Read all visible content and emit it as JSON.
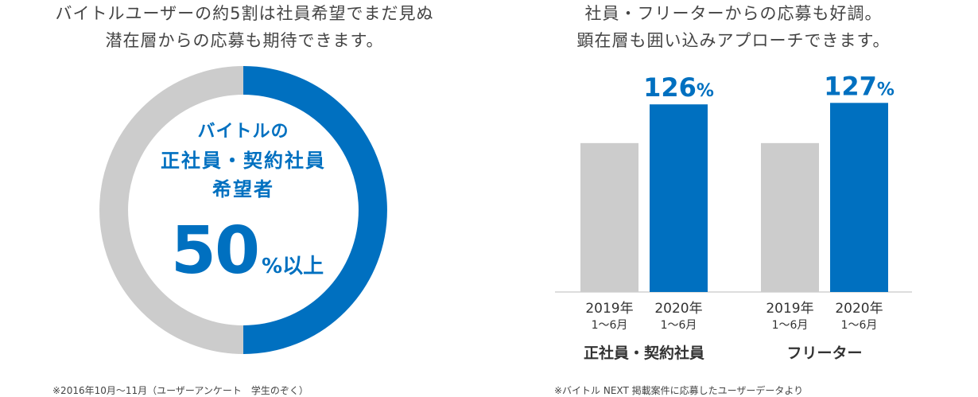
{
  "left": {
    "headline": [
      "バイトルユーザーの約5割は社員希望でまだ見ぬ",
      "潜在層からの応募も期待できます。"
    ],
    "ring_label": [
      "バイトルの",
      "正社員・契約社員",
      "希望者"
    ],
    "ring_value": "50",
    "ring_unit": "%以上",
    "footnote": "※2016年10月〜11月（ユーザーアンケート　学生のぞく）",
    "colors": {
      "filled": "#0070c0",
      "remaining": "#cccccc"
    }
  },
  "right": {
    "headline": [
      "社員・フリーターからの応募も好調。",
      "顕在層も囲い込みアプローチできます。"
    ],
    "footnote": "※バイトル NEXT 掲載案件に応募したユーザーデータより"
  },
  "chart_data": [
    {
      "type": "pie",
      "slices": [
        {
          "label": "正社員・契約社員希望者",
          "value": 50,
          "color": "#0070c0"
        },
        {
          "label": "",
          "value": 50,
          "color": "#cccccc"
        }
      ],
      "title": "バイトルの 正社員・契約社員 希望者 50%以上",
      "style": "donut"
    },
    {
      "type": "bar",
      "groups": [
        "正社員・契約社員",
        "フリーター"
      ],
      "categories": [
        [
          "2019年",
          "1〜6月"
        ],
        [
          "2020年",
          "1〜6月"
        ]
      ],
      "series": [
        {
          "values": [
            100,
            100
          ],
          "color": "#cccccc"
        },
        {
          "values": [
            126,
            127
          ],
          "color": "#0070c0"
        }
      ],
      "data_labels": [
        "",
        "126%",
        "",
        "127%"
      ],
      "ylim": [
        0,
        140
      ],
      "grid": false
    }
  ]
}
